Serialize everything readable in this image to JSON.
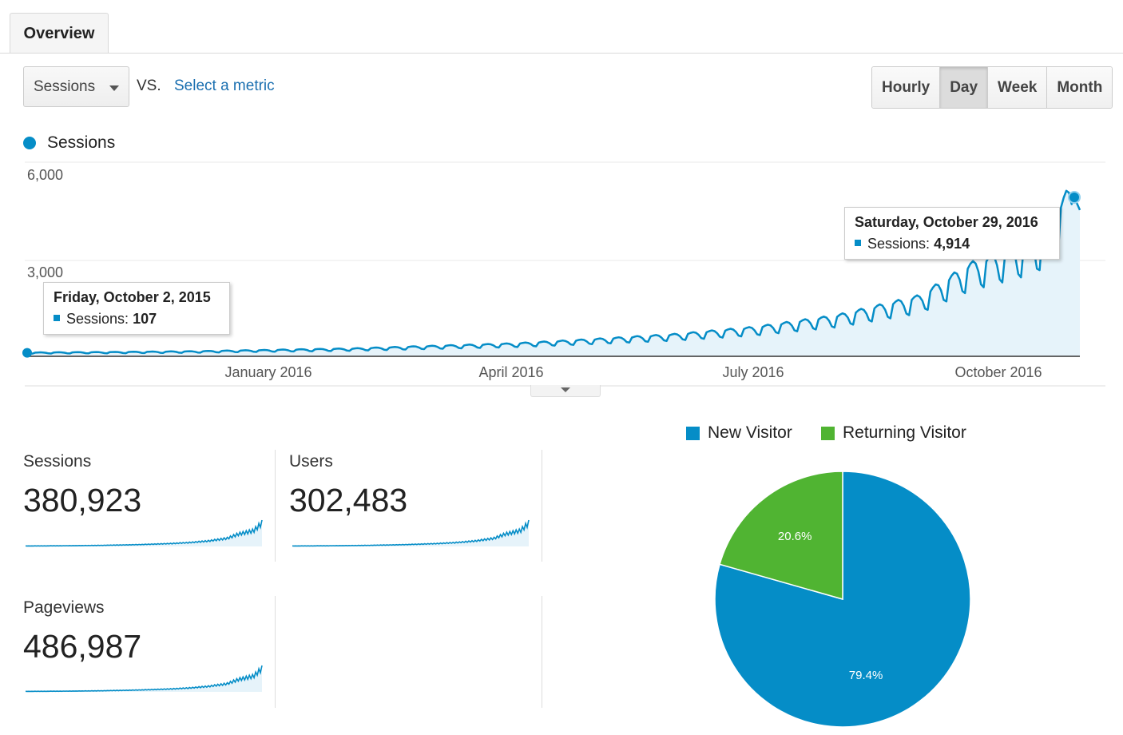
{
  "tabs": {
    "overview": "Overview"
  },
  "controls": {
    "metric": "Sessions",
    "vs": "VS.",
    "select_metric": "Select a metric",
    "granularity": [
      "Hourly",
      "Day",
      "Week",
      "Month"
    ],
    "active_granularity": "Day"
  },
  "chart_data": {
    "type": "area",
    "series": [
      {
        "name": "Sessions",
        "color": "#058dc7",
        "x": [
          "2015-10-02",
          "2015-11-01",
          "2015-12-01",
          "2016-01-01",
          "2016-02-01",
          "2016-03-01",
          "2016-04-01",
          "2016-05-01",
          "2016-06-01",
          "2016-07-01",
          "2016-08-01",
          "2016-09-01",
          "2016-09-20",
          "2016-10-01",
          "2016-10-15",
          "2016-10-29"
        ],
        "y": [
          107,
          120,
          140,
          180,
          220,
          290,
          360,
          480,
          620,
          820,
          1150,
          1700,
          2600,
          2900,
          3300,
          4914
        ]
      }
    ],
    "y_ticks": [
      "6,000",
      "3,000"
    ],
    "x_ticks": [
      "January 2016",
      "April 2016",
      "July 2016",
      "October 2016"
    ],
    "ylim": [
      0,
      6000
    ],
    "grid": true
  },
  "tooltips": {
    "start": {
      "date": "Friday, October 2, 2015",
      "label": "Sessions:",
      "value": "107"
    },
    "end": {
      "date": "Saturday, October 29, 2016",
      "label": "Sessions:",
      "value": "4,914"
    }
  },
  "kpis": [
    {
      "label": "Sessions",
      "value": "380,923"
    },
    {
      "label": "Users",
      "value": "302,483"
    },
    {
      "label": "Pageviews",
      "value": "486,987"
    }
  ],
  "pie": {
    "legend": [
      {
        "label": "New Visitor",
        "color": "#058dc7"
      },
      {
        "label": "Returning Visitor",
        "color": "#50b432"
      }
    ],
    "slices": [
      {
        "label": "New Visitor",
        "value": 79.4,
        "text": "79.4%",
        "color": "#058dc7"
      },
      {
        "label": "Returning Visitor",
        "value": 20.6,
        "text": "20.6%",
        "color": "#50b432"
      }
    ]
  }
}
